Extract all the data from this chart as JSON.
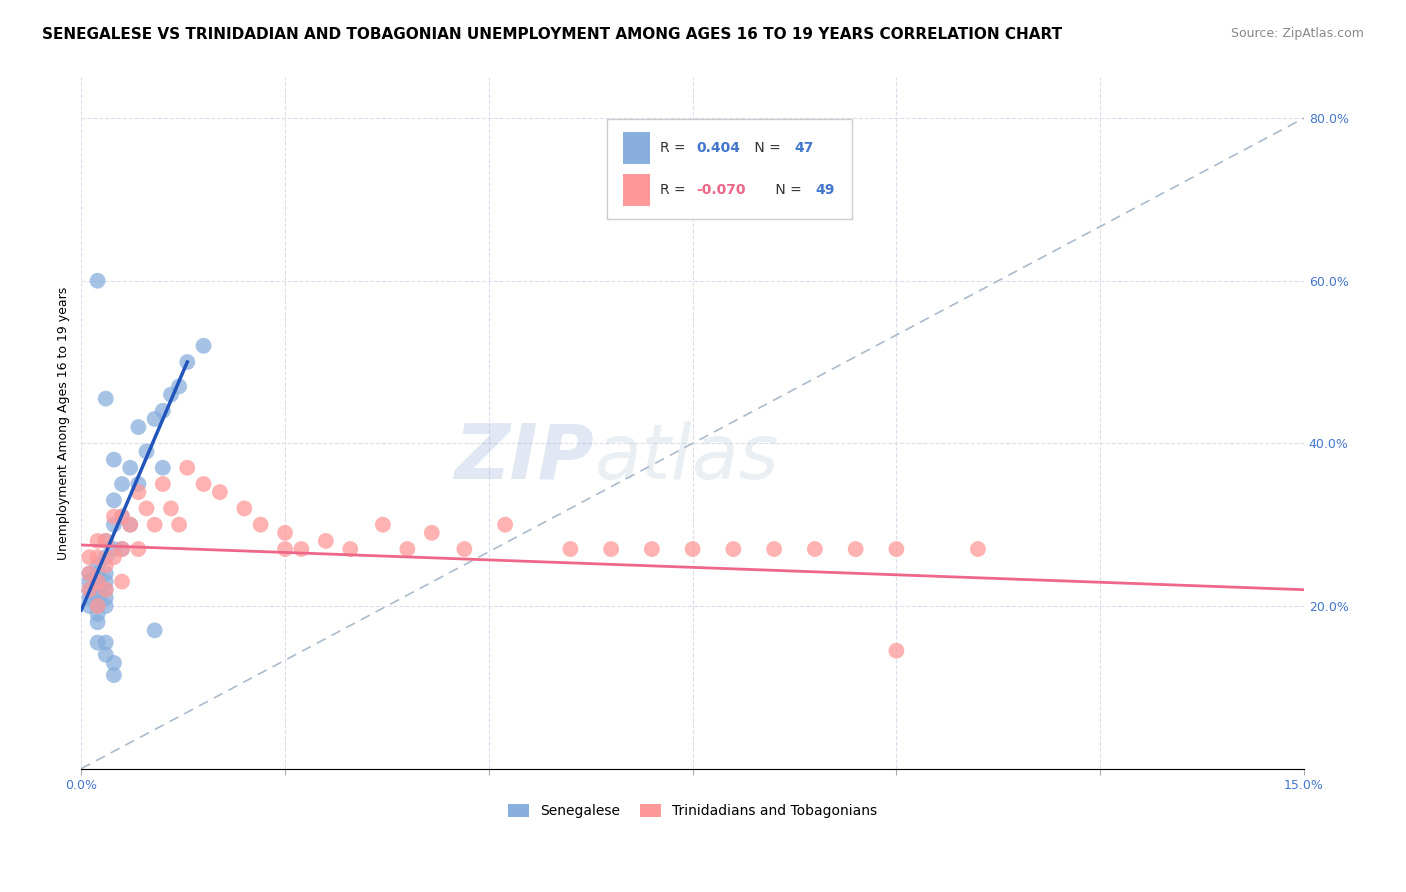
{
  "title": "SENEGALESE VS TRINIDADIAN AND TOBAGONIAN UNEMPLOYMENT AMONG AGES 16 TO 19 YEARS CORRELATION CHART",
  "source": "Source: ZipAtlas.com",
  "ylabel": "Unemployment Among Ages 16 to 19 years",
  "xlim": [
    0.0,
    0.15
  ],
  "ylim": [
    0.0,
    0.85
  ],
  "xtick_positions": [
    0.0,
    0.025,
    0.05,
    0.075,
    0.1,
    0.125,
    0.15
  ],
  "xticklabels": [
    "0.0%",
    "",
    "",
    "",
    "",
    "",
    "15.0%"
  ],
  "ytick_right_positions": [
    0.2,
    0.4,
    0.6,
    0.8
  ],
  "ytick_right_labels": [
    "20.0%",
    "40.0%",
    "60.0%",
    "80.0%"
  ],
  "blue_color": "#88AEDD",
  "pink_color": "#FF9999",
  "trend_blue": "#2255BB",
  "trend_pink": "#EE6688",
  "ref_line_color": "#AABBCC",
  "watermark_zip_color": "#AABBCC",
  "watermark_atlas_color": "#AABBCC",
  "background": "#FFFFFF",
  "grid_color": "#DDDDEE",
  "title_fontsize": 11,
  "source_fontsize": 9,
  "label_fontsize": 9,
  "tick_fontsize": 9,
  "tick_color": "#4477CC",
  "senegalese_x": [
    0.001,
    0.001,
    0.001,
    0.001,
    0.001,
    0.002,
    0.002,
    0.002,
    0.002,
    0.002,
    0.002,
    0.002,
    0.002,
    0.003,
    0.003,
    0.003,
    0.003,
    0.003,
    0.003,
    0.003,
    0.004,
    0.004,
    0.004,
    0.004,
    0.005,
    0.005,
    0.005,
    0.006,
    0.006,
    0.007,
    0.007,
    0.008,
    0.009,
    0.01,
    0.011,
    0.012,
    0.013,
    0.015,
    0.002,
    0.003,
    0.003,
    0.004,
    0.004,
    0.009,
    0.002,
    0.003,
    0.01
  ],
  "senegalese_y": [
    0.2,
    0.21,
    0.22,
    0.23,
    0.24,
    0.18,
    0.19,
    0.2,
    0.21,
    0.22,
    0.23,
    0.24,
    0.25,
    0.2,
    0.21,
    0.22,
    0.23,
    0.24,
    0.26,
    0.28,
    0.27,
    0.3,
    0.33,
    0.38,
    0.27,
    0.31,
    0.35,
    0.3,
    0.37,
    0.35,
    0.42,
    0.39,
    0.43,
    0.44,
    0.46,
    0.47,
    0.5,
    0.52,
    0.155,
    0.155,
    0.14,
    0.13,
    0.115,
    0.17,
    0.6,
    0.455,
    0.37
  ],
  "trinidadian_x": [
    0.001,
    0.001,
    0.001,
    0.002,
    0.002,
    0.002,
    0.002,
    0.003,
    0.003,
    0.003,
    0.004,
    0.004,
    0.005,
    0.005,
    0.005,
    0.006,
    0.007,
    0.007,
    0.008,
    0.009,
    0.01,
    0.011,
    0.012,
    0.013,
    0.015,
    0.017,
    0.02,
    0.022,
    0.025,
    0.027,
    0.03,
    0.033,
    0.037,
    0.04,
    0.043,
    0.047,
    0.052,
    0.06,
    0.065,
    0.07,
    0.075,
    0.08,
    0.085,
    0.09,
    0.095,
    0.1,
    0.11,
    0.025,
    0.1
  ],
  "trinidadian_y": [
    0.22,
    0.24,
    0.26,
    0.2,
    0.23,
    0.26,
    0.28,
    0.22,
    0.25,
    0.28,
    0.26,
    0.31,
    0.23,
    0.27,
    0.31,
    0.3,
    0.27,
    0.34,
    0.32,
    0.3,
    0.35,
    0.32,
    0.3,
    0.37,
    0.35,
    0.34,
    0.32,
    0.3,
    0.29,
    0.27,
    0.28,
    0.27,
    0.3,
    0.27,
    0.29,
    0.27,
    0.3,
    0.27,
    0.27,
    0.27,
    0.27,
    0.27,
    0.27,
    0.27,
    0.27,
    0.27,
    0.27,
    0.27,
    0.145
  ],
  "ref_line_x": [
    0.0,
    0.15
  ],
  "ref_line_y": [
    0.0,
    0.8
  ]
}
